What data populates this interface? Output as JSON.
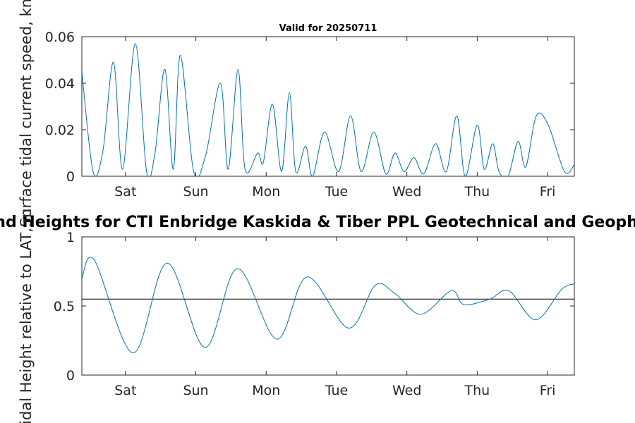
{
  "colors": {
    "series": "#0072BD",
    "axis": "#262626",
    "reference": "#000000"
  },
  "chart_data": [
    {
      "type": "line",
      "title": "Valid for 20250711",
      "ylabel": "Surface tidal current speed, kn",
      "xlim": [
        0,
        7
      ],
      "ylim": [
        0,
        0.06
      ],
      "yticks": [
        "0",
        "0.02",
        "0.04",
        "0.06"
      ],
      "ytick_values": [
        0,
        0.02,
        0.04,
        0.06
      ],
      "xticks": [
        "Sat",
        "Sun",
        "Mon",
        "Tue",
        "Wed",
        "Thu",
        "Fri"
      ],
      "xtick_values": [
        0.62,
        1.62,
        2.62,
        3.62,
        4.62,
        5.62,
        6.62
      ],
      "series": [
        {
          "x": [
            0.0,
            0.16,
            0.3,
            0.45,
            0.58,
            0.76,
            0.92,
            1.04,
            1.18,
            1.3,
            1.4,
            1.59,
            1.76,
            1.97,
            2.08,
            2.22,
            2.32,
            2.5,
            2.58,
            2.71,
            2.84,
            2.95,
            3.04,
            3.18,
            3.28,
            3.45,
            3.65,
            3.82,
            3.97,
            4.15,
            4.32,
            4.45,
            4.58,
            4.72,
            4.86,
            5.03,
            5.18,
            5.33,
            5.45,
            5.62,
            5.72,
            5.84,
            5.93,
            6.06,
            6.2,
            6.31,
            6.46,
            6.63,
            6.86,
            7.0
          ],
          "values": [
            0.045,
            0.002,
            0.011,
            0.049,
            0.003,
            0.057,
            0.002,
            0.01,
            0.046,
            0.003,
            0.052,
            0.002,
            0.009,
            0.04,
            0.003,
            0.046,
            0.003,
            0.01,
            0.006,
            0.031,
            0.002,
            0.036,
            0.002,
            0.013,
            0.0,
            0.019,
            0.002,
            0.026,
            0.002,
            0.019,
            0.001,
            0.01,
            0.002,
            0.008,
            0.001,
            0.014,
            0.002,
            0.026,
            0.0,
            0.022,
            0.003,
            0.014,
            0.002,
            0.0,
            0.015,
            0.004,
            0.026,
            0.022,
            0.002,
            0.005
          ]
        }
      ]
    },
    {
      "type": "line",
      "title": "Currents and Heights for CTI Enbridge  Kaskida & Tiber PPL Geotechnical and Geophysical Survey",
      "ylabel": "Tidal Height relative to LAT, m",
      "xlim": [
        0,
        7
      ],
      "ylim": [
        0,
        1
      ],
      "yticks": [
        "0",
        "0.5",
        "1"
      ],
      "ytick_values": [
        0,
        0.5,
        1
      ],
      "xticks": [
        "Sat",
        "Sun",
        "Mon",
        "Tue",
        "Wed",
        "Thu",
        "Fri"
      ],
      "xtick_values": [
        0.62,
        1.62,
        2.62,
        3.62,
        4.62,
        5.62,
        6.62
      ],
      "reference_line": 0.55,
      "series": [
        {
          "x": [
            0.0,
            0.18,
            0.73,
            1.21,
            1.75,
            2.21,
            2.77,
            3.2,
            3.79,
            4.17,
            4.45,
            4.82,
            5.25,
            5.43,
            5.8,
            6.07,
            6.45,
            6.82,
            7.0
          ],
          "values": [
            0.7,
            0.83,
            0.16,
            0.81,
            0.2,
            0.77,
            0.26,
            0.71,
            0.34,
            0.65,
            0.59,
            0.44,
            0.61,
            0.51,
            0.55,
            0.61,
            0.4,
            0.62,
            0.66
          ]
        }
      ]
    }
  ]
}
